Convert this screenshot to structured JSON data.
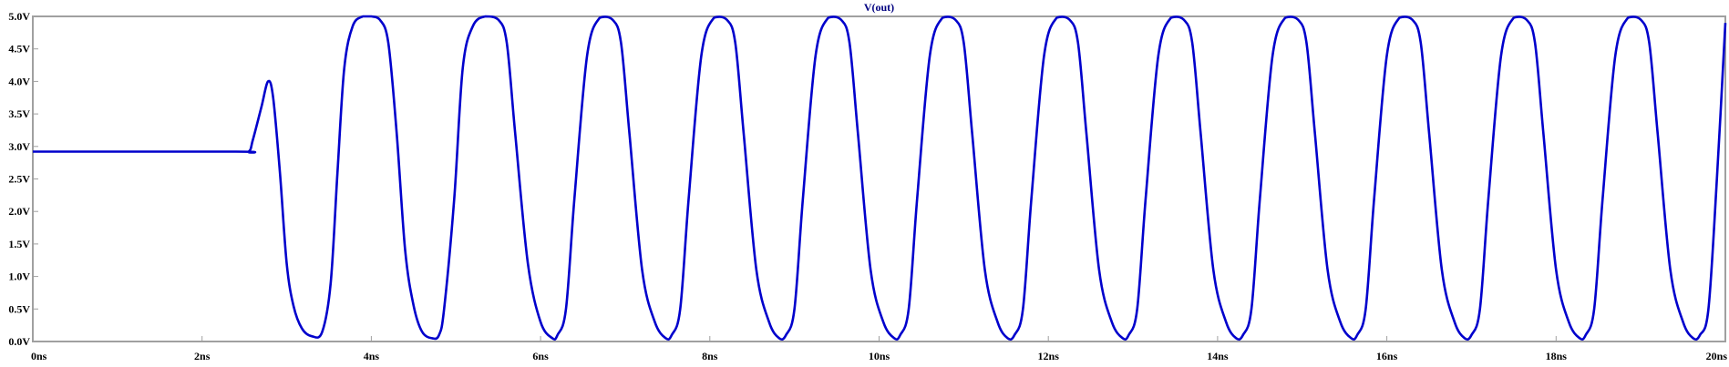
{
  "chart_data": {
    "type": "line",
    "title": "V(out)",
    "x_unit": "ns",
    "y_unit": "V",
    "xlim": [
      0,
      20
    ],
    "ylim": [
      0,
      5
    ],
    "x_ticks": [
      0,
      2,
      4,
      6,
      8,
      10,
      12,
      14,
      16,
      18,
      20
    ],
    "x_tick_labels": [
      "0ns",
      "2ns",
      "4ns",
      "6ns",
      "8ns",
      "10ns",
      "12ns",
      "14ns",
      "16ns",
      "18ns",
      "20ns"
    ],
    "y_ticks": [
      0,
      0.5,
      1,
      1.5,
      2,
      2.5,
      3,
      3.5,
      4,
      4.5,
      5
    ],
    "y_tick_labels": [
      "0.0V",
      "0.5V",
      "1.0V",
      "1.5V",
      "2.0V",
      "2.5V",
      "3.0V",
      "3.5V",
      "4.0V",
      "4.5V",
      "5.0V"
    ],
    "grid": false,
    "series": [
      {
        "name": "V(out)",
        "color": "#0000cc",
        "x": [
          0.0,
          2.4,
          2.55,
          2.6,
          2.7,
          2.78,
          2.84,
          2.92,
          3.0,
          3.08,
          3.18,
          3.3,
          3.42,
          3.52,
          3.6,
          3.68,
          3.78,
          3.9,
          4.0,
          4.1,
          4.2,
          4.3,
          4.4,
          4.5,
          4.6,
          4.72,
          4.8,
          4.86,
          4.98,
          5.08,
          5.2,
          5.35,
          5.5,
          5.6,
          5.7,
          5.85,
          6.0,
          6.14,
          6.2,
          6.3,
          6.4,
          6.55,
          6.7,
          6.85,
          6.95,
          7.05,
          7.2,
          7.35,
          7.48,
          7.55,
          7.65,
          7.75,
          7.9,
          8.05,
          8.2,
          8.3,
          8.4,
          8.55,
          8.7,
          8.82,
          8.9,
          9.0,
          9.1,
          9.25,
          9.4,
          9.55,
          9.65,
          9.75,
          9.9,
          10.05,
          10.18,
          10.25,
          10.35,
          10.45,
          10.6,
          10.75,
          10.9,
          11.0,
          11.1,
          11.25,
          11.4,
          11.52,
          11.6,
          11.7,
          11.8,
          11.95,
          12.1,
          12.25,
          12.35,
          12.45,
          12.6,
          12.75,
          12.88,
          12.95,
          13.05,
          13.15,
          13.3,
          13.45,
          13.6,
          13.7,
          13.8,
          13.95,
          14.1,
          14.22,
          14.3,
          14.4,
          14.5,
          14.65,
          14.8,
          14.95,
          15.05,
          15.15,
          15.3,
          15.45,
          15.58,
          15.65,
          15.75,
          15.85,
          16.0,
          16.15,
          16.3,
          16.4,
          16.5,
          16.65,
          16.8,
          16.92,
          17.0,
          17.1,
          17.2,
          17.35,
          17.5,
          17.65,
          17.75,
          17.85,
          18.0,
          18.15,
          18.28,
          18.35,
          18.45,
          18.55,
          18.7,
          18.85,
          19.0,
          19.1,
          19.2,
          19.35,
          19.5,
          19.62,
          19.7,
          19.8,
          19.9,
          20.0
        ],
        "y": [
          2.92,
          2.92,
          2.92,
          3.1,
          3.6,
          4.0,
          3.75,
          2.6,
          1.2,
          0.55,
          0.2,
          0.08,
          0.15,
          0.9,
          2.6,
          4.2,
          4.85,
          5.0,
          5.0,
          4.95,
          4.6,
          3.2,
          1.4,
          0.55,
          0.15,
          0.05,
          0.1,
          0.5,
          2.2,
          4.2,
          4.85,
          5.0,
          4.95,
          4.6,
          3.2,
          1.2,
          0.3,
          0.05,
          0.1,
          0.5,
          2.2,
          4.4,
          4.98,
          4.95,
          4.6,
          3.2,
          1.1,
          0.3,
          0.05,
          0.1,
          0.5,
          2.2,
          4.4,
          4.98,
          4.95,
          4.6,
          3.2,
          1.1,
          0.3,
          0.05,
          0.1,
          0.5,
          2.2,
          4.4,
          4.98,
          4.95,
          4.6,
          3.2,
          1.1,
          0.3,
          0.05,
          0.1,
          0.5,
          2.2,
          4.4,
          4.98,
          4.95,
          4.6,
          3.2,
          1.1,
          0.3,
          0.05,
          0.1,
          0.5,
          2.2,
          4.4,
          4.98,
          4.95,
          4.6,
          3.2,
          1.1,
          0.3,
          0.05,
          0.1,
          0.5,
          2.2,
          4.4,
          4.98,
          4.95,
          4.6,
          3.2,
          1.1,
          0.3,
          0.05,
          0.1,
          0.5,
          2.2,
          4.4,
          4.98,
          4.95,
          4.6,
          3.2,
          1.1,
          0.3,
          0.05,
          0.1,
          0.5,
          2.2,
          4.4,
          4.98,
          4.95,
          4.6,
          3.2,
          1.1,
          0.3,
          0.05,
          0.1,
          0.5,
          2.2,
          4.4,
          4.98,
          4.95,
          4.6,
          3.2,
          1.1,
          0.3,
          0.05,
          0.1,
          0.5,
          2.2,
          4.4,
          4.98,
          4.95,
          4.6,
          3.2,
          1.1,
          0.3,
          0.05,
          0.1,
          0.5,
          2.5,
          4.9
        ]
      }
    ],
    "colors": {
      "axis_frame": "#a0a0a0",
      "title": "#000080",
      "tick_text": "#000000"
    }
  }
}
